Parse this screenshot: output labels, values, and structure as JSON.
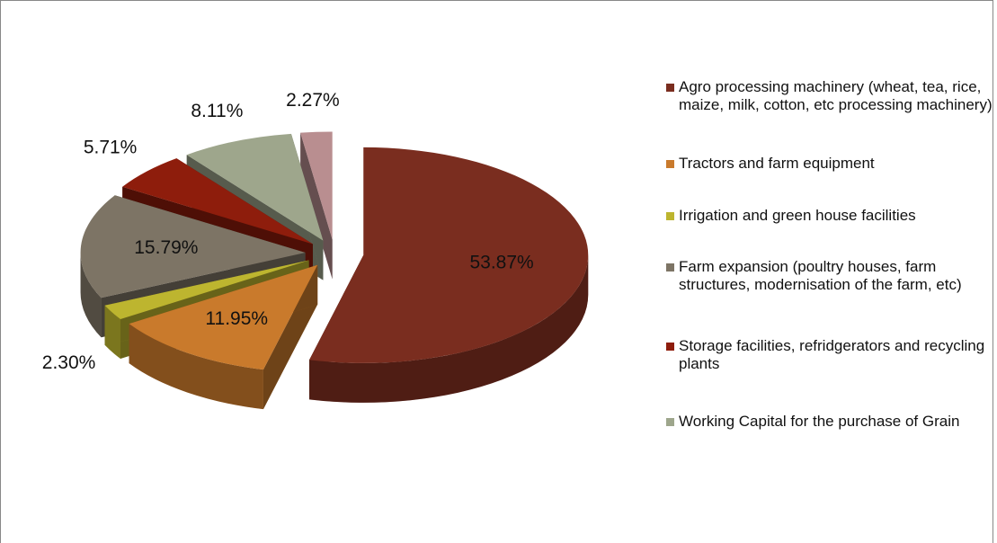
{
  "chart_data": {
    "type": "pie",
    "categories": [
      "Agro processing machinery (wheat, tea, rice, maize, milk, cotton, etc processing machinery)",
      "Tractors and farm equipment",
      "Irrigation  and green house facilities",
      "Farm expansion (poultry houses, farm structures, modernisation of the farm, etc)",
      "Storage facilities, refridgerators and recycling plants",
      "Working Capital for the purchase of Grain",
      null
    ],
    "values": [
      53.87,
      11.95,
      2.3,
      15.79,
      5.71,
      8.11,
      2.27
    ],
    "value_labels": [
      "53.87%",
      "11.95%",
      "2.30%",
      "15.79%",
      "5.71%",
      "8.11%",
      "2.27%"
    ],
    "colors": [
      "#7a2d1f",
      "#c97a2c",
      "#bdb52f",
      "#7d7465",
      "#8e1d0c",
      "#9ea68c",
      "#b98e90"
    ]
  }
}
